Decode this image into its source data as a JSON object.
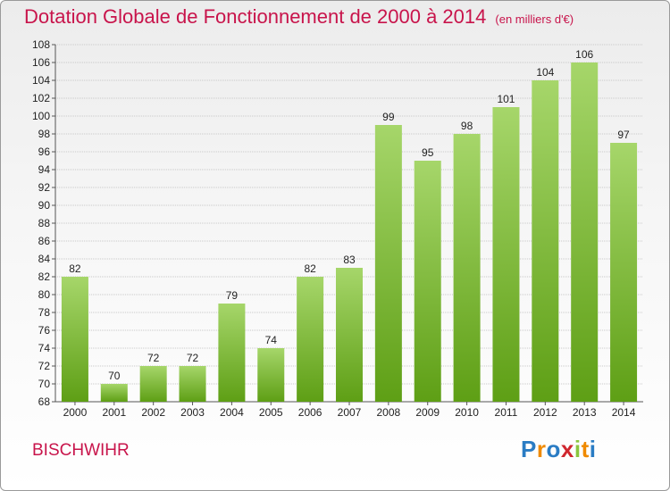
{
  "header": {
    "title": "Dotation Globale de Fonctionnement de 2000 à 2014",
    "unit": "(en milliers d'€)"
  },
  "footer": {
    "commune": "BISCHWIHR",
    "logo": {
      "letters": [
        "P",
        "r",
        "o",
        "x",
        "i",
        "t",
        "i"
      ],
      "colors": [
        "#2a7cc4",
        "#f08a00",
        "#2a7cc4",
        "#d0262e",
        "#8cc63f",
        "#f08a00",
        "#2a7cc4"
      ]
    }
  },
  "colors": {
    "bar_light": "#a6d66a",
    "bar_dark": "#5e9f15",
    "title": "#c8144b"
  },
  "chart_data": {
    "type": "bar",
    "title": "Dotation Globale de Fonctionnement de 2000 à 2014",
    "subtitle": "(en milliers d'€)",
    "categories": [
      "2000",
      "2001",
      "2002",
      "2003",
      "2004",
      "2005",
      "2006",
      "2007",
      "2008",
      "2009",
      "2010",
      "2011",
      "2012",
      "2013",
      "2014"
    ],
    "values": [
      82,
      70,
      72,
      72,
      79,
      74,
      82,
      83,
      99,
      95,
      98,
      101,
      104,
      106,
      97
    ],
    "ylim": [
      68,
      108
    ],
    "yticks": [
      68,
      70,
      72,
      74,
      76,
      78,
      80,
      82,
      84,
      86,
      88,
      90,
      92,
      94,
      96,
      98,
      100,
      102,
      104,
      106,
      108
    ],
    "grid": true
  }
}
